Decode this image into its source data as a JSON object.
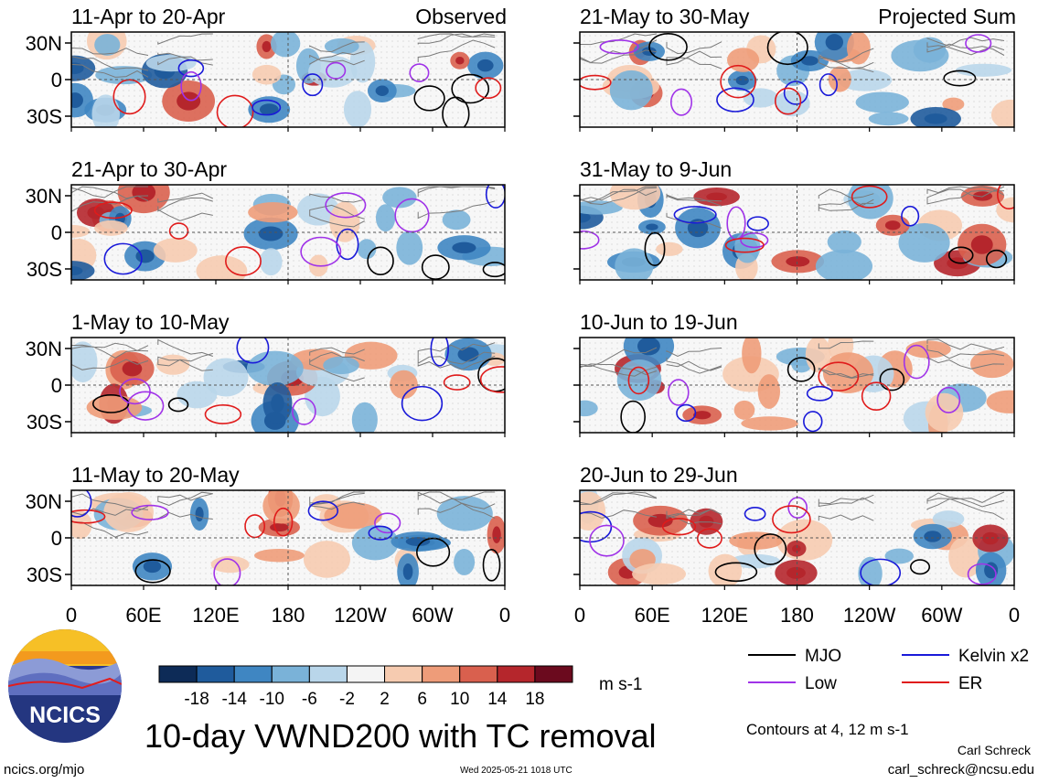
{
  "figure": {
    "main_title": "10-day VWND200 with TC removal",
    "left_column_label": "Observed",
    "right_column_label": "Projected Sum",
    "footer_url": "ncics.org/mjo",
    "timestamp": "Wed 2025-05-21 1018 UTC",
    "author": "Carl Schreck",
    "email": "carl_schreck@ncsu.edu",
    "contours_note": "Contours at 4, 12 m s-1",
    "units": "m s-1",
    "logo_text": "NCICS"
  },
  "colorbar": {
    "ticks": [
      "-18",
      "-14",
      "-10",
      "-6",
      "-2",
      "2",
      "6",
      "10",
      "14",
      "18"
    ],
    "colors": [
      "#0d2b57",
      "#1f5b9c",
      "#3f86c2",
      "#7ab2d8",
      "#b9d6ea",
      "#f4f4f4",
      "#f6cbb0",
      "#ee9c79",
      "#d9604e",
      "#b5262c",
      "#6b0a1e"
    ]
  },
  "legend": [
    {
      "label": "MJO",
      "color": "#000000"
    },
    {
      "label": "Kelvin x2",
      "color": "#1a1ad9"
    },
    {
      "label": "Low",
      "color": "#a033e8"
    },
    {
      "label": "ER",
      "color": "#e01b1b"
    }
  ],
  "chart_data": {
    "type": "heatmap",
    "variable": "VWND200",
    "x_tick_labels": [
      "0",
      "60E",
      "120E",
      "180",
      "120W",
      "60W",
      "0"
    ],
    "y_tick_labels": [
      "30N",
      "0",
      "30S"
    ],
    "panels": [
      {
        "title": "11-Apr to 20-Apr",
        "column": "Observed"
      },
      {
        "title": "21-Apr to 30-Apr",
        "column": "Observed"
      },
      {
        "title": "1-May to 10-May",
        "column": "Observed"
      },
      {
        "title": "11-May to 20-May",
        "column": "Observed"
      },
      {
        "title": "21-May to 30-May",
        "column": "Projected Sum"
      },
      {
        "title": "31-May to 9-Jun",
        "column": "Projected Sum"
      },
      {
        "title": "10-Jun to 19-Jun",
        "column": "Projected Sum"
      },
      {
        "title": "20-Jun to 29-Jun",
        "column": "Projected Sum"
      }
    ]
  }
}
